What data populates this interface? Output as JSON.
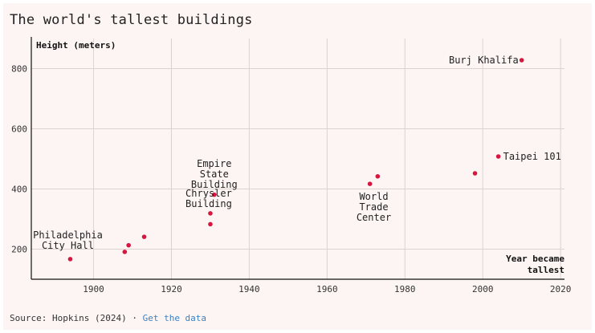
{
  "title": "The world's tallest buildings",
  "source": {
    "text": "Source: Hopkins (2024)",
    "separator": "·",
    "link_label": "Get the data"
  },
  "colors": {
    "point": "#d6163f",
    "axis": "#111111",
    "grid": "#dcd2cf"
  },
  "chart_data": {
    "type": "scatter",
    "title": "The world's tallest buildings",
    "ylabel": "Height (meters)",
    "xlabel": "Year became tallest",
    "xlim": [
      1884,
      2021
    ],
    "ylim": [
      100,
      900
    ],
    "xticks": [
      1900,
      1920,
      1940,
      1960,
      1980,
      2000,
      2020
    ],
    "yticks": [
      200,
      400,
      600,
      800
    ],
    "grid": true,
    "points": [
      {
        "x": 1894,
        "y": 167
      },
      {
        "x": 1908,
        "y": 191
      },
      {
        "x": 1909,
        "y": 213
      },
      {
        "x": 1913,
        "y": 241
      },
      {
        "x": 1930,
        "y": 283
      },
      {
        "x": 1930,
        "y": 319
      },
      {
        "x": 1931,
        "y": 381
      },
      {
        "x": 1971,
        "y": 417
      },
      {
        "x": 1973,
        "y": 442
      },
      {
        "x": 1998,
        "y": 452
      },
      {
        "x": 2004,
        "y": 508
      },
      {
        "x": 2010,
        "y": 828
      }
    ],
    "annotations": [
      {
        "lines": [
          "Philadelphia",
          "City Hall"
        ],
        "x": 1894,
        "y": 167
      },
      {
        "lines": [
          "Empire",
          "State",
          "Building"
        ],
        "x": 1931,
        "y": 381
      },
      {
        "lines": [
          "Chrysler",
          "Building"
        ],
        "x": 1930,
        "y": 319
      },
      {
        "lines": [
          "World",
          "Trade",
          "Center"
        ],
        "x": 1972,
        "y": 417
      },
      {
        "lines": [
          "Taipei 101"
        ],
        "x": 2004,
        "y": 508
      },
      {
        "lines": [
          "Burj Khalifa"
        ],
        "x": 2010,
        "y": 828
      }
    ]
  }
}
